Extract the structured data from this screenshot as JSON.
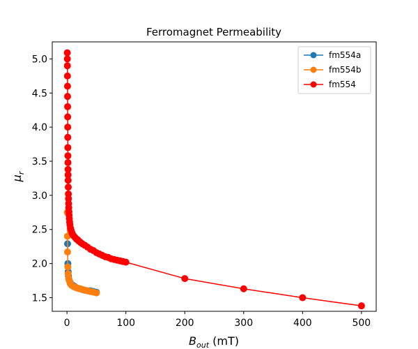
{
  "chart_data": {
    "type": "line",
    "title": "Ferromagnet Permeability",
    "xlabel": {
      "base": "B",
      "sub": "out",
      "unit": " (mT)"
    },
    "ylabel": {
      "base": "μ",
      "sub": "r"
    },
    "xlim": [
      -25,
      525
    ],
    "ylim": [
      1.3,
      5.25
    ],
    "xticks": [
      0,
      100,
      200,
      300,
      400,
      500
    ],
    "yticks": [
      1.5,
      2.0,
      2.5,
      3.0,
      3.5,
      4.0,
      4.5,
      5.0
    ],
    "legend_position": "top-right",
    "grid": false,
    "series": [
      {
        "name": "fm554a",
        "color": "#1f77b4",
        "x": [
          1.0,
          1.5,
          2.0,
          2.5,
          3,
          4,
          5,
          6,
          8,
          10,
          12,
          15,
          18,
          22,
          26,
          30,
          35,
          40,
          45,
          50
        ],
        "y": [
          2.29,
          2.0,
          1.88,
          1.82,
          1.78,
          1.75,
          1.73,
          1.71,
          1.69,
          1.68,
          1.67,
          1.65,
          1.64,
          1.63,
          1.62,
          1.61,
          1.6,
          1.6,
          1.59,
          1.58
        ]
      },
      {
        "name": "fm554b",
        "color": "#ff7f0e",
        "x": [
          0.5,
          0.8,
          1.0,
          1.5,
          2.0,
          3,
          4,
          5,
          6,
          8,
          10,
          12,
          15,
          18,
          22,
          26,
          30,
          35,
          40,
          45,
          50
        ],
        "y": [
          2.75,
          2.4,
          2.17,
          1.95,
          1.85,
          1.78,
          1.75,
          1.72,
          1.7,
          1.68,
          1.67,
          1.66,
          1.65,
          1.64,
          1.63,
          1.62,
          1.61,
          1.6,
          1.59,
          1.58,
          1.57
        ]
      },
      {
        "name": "fm554",
        "color": "#ff0000",
        "x": [
          0.5,
          0.6,
          0.7,
          0.8,
          0.9,
          1.0,
          1.1,
          1.2,
          1.3,
          1.4,
          1.5,
          1.6,
          1.7,
          1.8,
          1.9,
          2.0,
          2.2,
          2.4,
          2.6,
          2.8,
          3.0,
          3.3,
          3.6,
          4.0,
          4.5,
          5,
          6,
          7,
          8,
          9,
          10,
          12,
          14,
          16,
          18,
          20,
          23,
          26,
          30,
          35,
          40,
          45,
          50,
          55,
          60,
          65,
          70,
          75,
          80,
          85,
          90,
          95,
          100,
          200,
          300,
          400,
          500
        ],
        "y": [
          5.09,
          5.0,
          4.9,
          4.75,
          4.6,
          4.45,
          4.3,
          4.15,
          4.0,
          3.85,
          3.7,
          3.58,
          3.48,
          3.38,
          3.3,
          3.22,
          3.12,
          3.02,
          2.95,
          2.88,
          2.82,
          2.76,
          2.71,
          2.66,
          2.61,
          2.57,
          2.52,
          2.49,
          2.46,
          2.44,
          2.42,
          2.4,
          2.38,
          2.36,
          2.35,
          2.33,
          2.31,
          2.29,
          2.27,
          2.24,
          2.21,
          2.19,
          2.16,
          2.14,
          2.12,
          2.1,
          2.09,
          2.07,
          2.06,
          2.05,
          2.04,
          2.03,
          2.02,
          1.78,
          1.63,
          1.5,
          1.38
        ]
      }
    ]
  }
}
